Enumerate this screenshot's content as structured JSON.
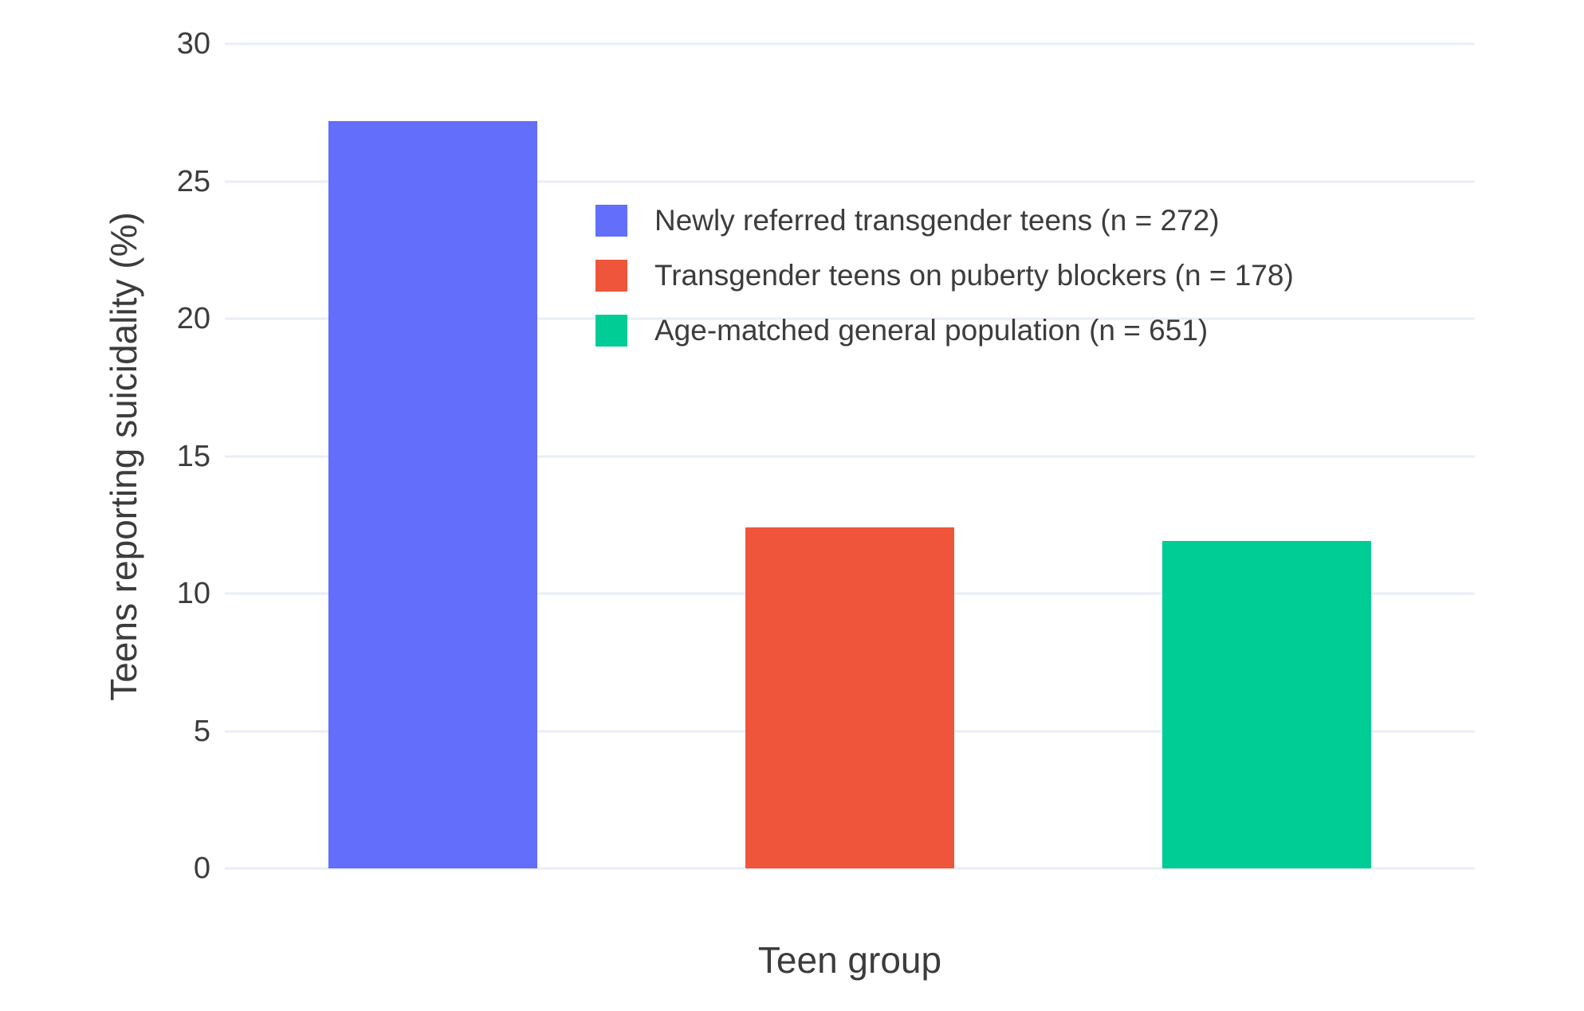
{
  "chart_data": {
    "type": "bar",
    "title": "",
    "xlabel": "Teen group",
    "ylabel": "Teens reporting suicidality (%)",
    "ylim": [
      0,
      30
    ],
    "yticks": [
      0,
      5,
      10,
      15,
      20,
      25,
      30
    ],
    "grid": true,
    "grid_color": "#e9edf6",
    "background_color": "#ffffff",
    "text_color": "#3c3c3c",
    "legend_position": "inside-top-left",
    "categories": [
      "Newly referred transgender teens",
      "Transgender teens on puberty blockers",
      "Age-matched general population"
    ],
    "series": [
      {
        "name": "Newly referred transgender teens (n = 272)",
        "value": 27.2,
        "color": "#636EFA"
      },
      {
        "name": "Transgender teens on puberty blockers (n = 178)",
        "value": 12.4,
        "color": "#EF553B"
      },
      {
        "name": "Age-matched general population (n = 651)",
        "value": 11.9,
        "color": "#00CC96"
      }
    ]
  }
}
